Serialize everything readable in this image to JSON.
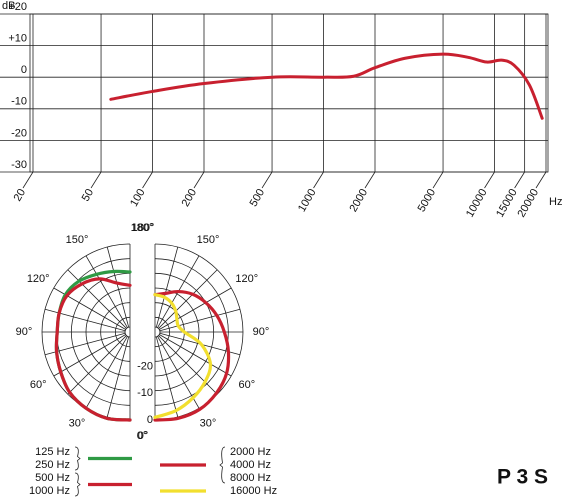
{
  "chart_data": [
    {
      "type": "line",
      "y_label": "dB",
      "x_label": "Hz",
      "log_x": true,
      "grid": true,
      "xlim": [
        20,
        20000
      ],
      "ylim": [
        -30,
        20
      ],
      "xticks": [
        20,
        50,
        100,
        200,
        500,
        1000,
        2000,
        5000,
        10000,
        15000,
        20000
      ],
      "yticks": [
        {
          "value": 20,
          "label": "+20"
        },
        {
          "value": 10,
          "label": "+10"
        },
        0,
        -10,
        -20,
        -30
      ],
      "x": [
        57,
        100,
        200,
        500,
        1000,
        1500,
        2000,
        3000,
        5000,
        7000,
        9000,
        11000,
        13000,
        16000,
        19000
      ],
      "series": [
        {
          "color": "#c8202f",
          "values": [
            -7,
            -4.5,
            -2,
            0,
            0,
            0.3,
            3,
            6,
            7.3,
            6.3,
            4.8,
            5.4,
            3.8,
            -2.5,
            -13
          ]
        }
      ]
    },
    {
      "type": "polar",
      "theta": [
        0,
        15,
        30,
        45,
        60,
        75,
        90,
        105,
        120,
        135,
        150,
        165,
        180
      ],
      "thetaticks": [
        {
          "value": 0,
          "label": "0°"
        },
        {
          "value": 30,
          "label": "30°"
        },
        {
          "value": 60,
          "label": "60°"
        },
        {
          "value": 90,
          "label": "90°"
        },
        {
          "value": 120,
          "label": "120°"
        },
        {
          "value": 150,
          "label": "150°"
        },
        {
          "value": 180,
          "label": "180°"
        }
      ],
      "rlim": [
        -33,
        0
      ],
      "rticks": [
        -20,
        -10,
        0
      ],
      "series": [
        {
          "labels": [
            "125 Hz",
            "250 Hz"
          ],
          "half": "left",
          "color": "#2f9a44",
          "values": [
            0,
            0.5,
            0,
            -1,
            -3,
            -4.5,
            -5.7,
            -5.5,
            -5,
            -6,
            -8,
            -9.5,
            -10.5
          ]
        },
        {
          "labels": [
            "500 Hz",
            "1000 Hz"
          ],
          "half": "left",
          "color": "#c8202f",
          "values": [
            0,
            0.5,
            0,
            -1,
            -3,
            -4.5,
            -5.7,
            -5.5,
            -5.7,
            -7.5,
            -10,
            -14,
            -15.5
          ]
        },
        {
          "labels": [
            "2000 Hz",
            "4000 Hz",
            "8000 Hz"
          ],
          "half": "right",
          "color": "#c8202f",
          "values": [
            0,
            0.5,
            0.5,
            -0.5,
            -2,
            -4.5,
            -7,
            -9,
            -11,
            -13,
            -15.5,
            -18,
            -19
          ]
        },
        {
          "labels": [
            "16000 Hz"
          ],
          "half": "right",
          "color": "#f2df2e",
          "values": [
            -1,
            -2.5,
            -4.5,
            -6.5,
            -9,
            -15,
            -22,
            -24,
            -23.5,
            -22,
            -20.5,
            -19.5,
            -19
          ]
        }
      ]
    }
  ],
  "model": "P 3 S"
}
